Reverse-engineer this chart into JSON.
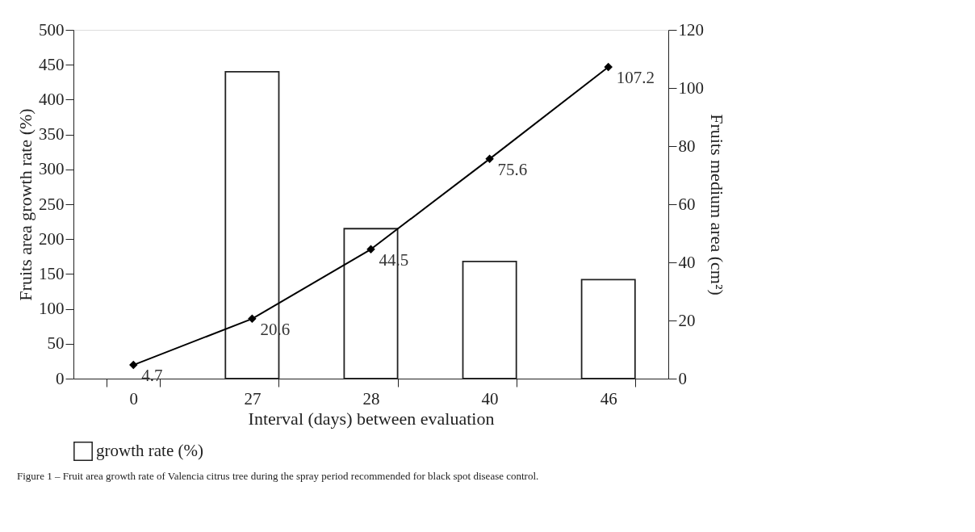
{
  "chart_data": {
    "type": "bar",
    "xlabel": "Interval (days) between evaluation",
    "ylabel": "Fruits area growth rate  (%)",
    "y2label": "Fruits medium area (cm²)",
    "categories": [
      "0",
      "27",
      "28",
      "40",
      "46"
    ],
    "series": [
      {
        "name": "growth rate (%)",
        "color": "#ffffff",
        "values": [
          null,
          440,
          215,
          168,
          142
        ]
      },
      {
        "type": "line",
        "axis": "y2",
        "color": "#000000",
        "marker": "diamond",
        "values": [
          4.7,
          20.6,
          44.5,
          75.6,
          107.2
        ],
        "value_labels": [
          "4.7",
          "20.6",
          "44.5",
          "75.6",
          "107.2"
        ]
      }
    ],
    "ylim": [
      0,
      500
    ],
    "yticks": [
      0,
      50,
      100,
      150,
      200,
      250,
      300,
      350,
      400,
      450,
      500
    ],
    "y2lim": [
      0,
      120
    ],
    "y2ticks": [
      0,
      20,
      40,
      60,
      80,
      100,
      120
    ],
    "grid": false,
    "legend": "bottom",
    "annotations": [
      "Figure 1 – Fruit area growth rate of Valencia citrus tree during the spray period recommended for black spot disease control."
    ]
  }
}
